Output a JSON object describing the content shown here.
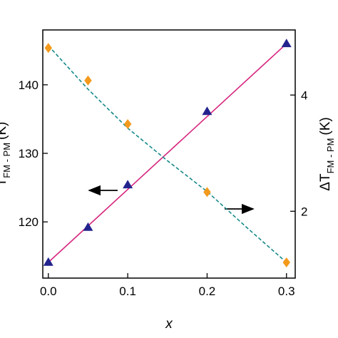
{
  "chart_data": {
    "type": "scatter",
    "x_label": "x",
    "y_label": {
      "main": "T",
      "sub": "FM - PM",
      "unit": "(K)"
    },
    "y2_label": {
      "main": "ΔT",
      "sub": "FM - PM",
      "unit": "(K)"
    },
    "xlim": [
      -0.007,
      0.311
    ],
    "xticks": [
      {
        "value": 0,
        "label": "0.0"
      },
      0.1,
      0.2,
      0.3
    ],
    "ylim": [
      111.8,
      148.0
    ],
    "yticks": [
      120,
      130,
      140
    ],
    "y2lim": [
      0.85,
      5.12
    ],
    "y2ticks": [
      2,
      4
    ],
    "series": [
      {
        "color": "#d6287f",
        "line": "solid",
        "marker": "none",
        "axis": "y",
        "x": [
          0,
          0.3
        ],
        "values": [
          114.1,
          146.0
        ]
      },
      {
        "color": "#15898a",
        "line": "dashed",
        "marker": "none",
        "axis": "y2",
        "x": [
          0,
          0.05,
          0.1,
          0.15,
          0.2,
          0.25,
          0.3
        ],
        "values": [
          4.85,
          4.1,
          3.43,
          2.87,
          2.34,
          1.72,
          1.12
        ]
      },
      {
        "color": "#23238e",
        "line": "none",
        "marker": "triangle",
        "axis": "y",
        "x": [
          0,
          0.05,
          0.1,
          0.2,
          0.3
        ],
        "values": [
          114.1,
          119.2,
          125.4,
          136.1,
          146.0
        ]
      },
      {
        "color": "#f39a1c",
        "line": "none",
        "marker": "diamond",
        "axis": "y2",
        "x": [
          0,
          0.05,
          0.1,
          0.2,
          0.3
        ],
        "values": [
          4.81,
          4.25,
          3.5,
          2.33,
          1.12
        ]
      }
    ]
  }
}
